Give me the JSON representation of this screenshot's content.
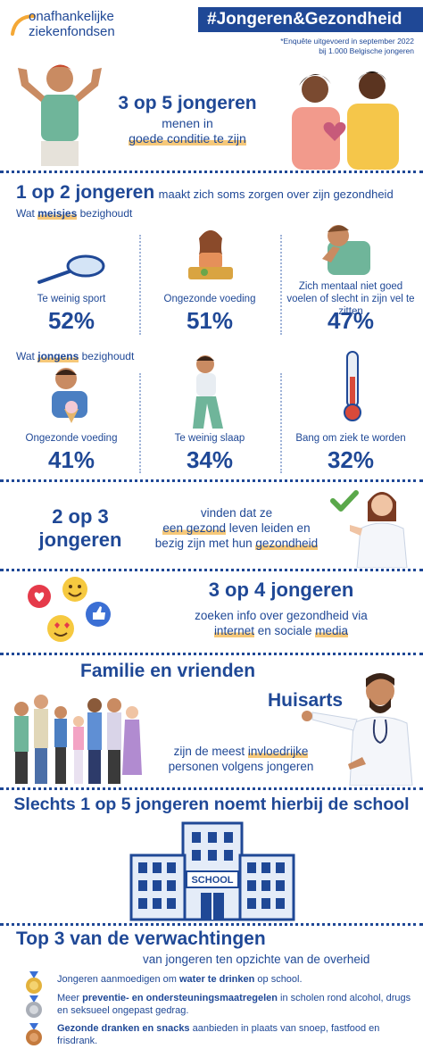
{
  "logo": {
    "line1": "onafhankelijke",
    "line2": "ziekenfondsen"
  },
  "header": {
    "title": "#Jongeren&Gezondheid",
    "note_line1": "*Enquête uitgevoerd in september 2022",
    "note_line2": "bij 1.000 Belgische jongeren"
  },
  "section1": {
    "headline": "3 op 5 jongeren",
    "line1": "menen in",
    "line2": "goede conditie te zijn"
  },
  "section2": {
    "headline": "1 op 2 jongeren",
    "rest": "maakt zich soms zorgen over zijn gezondheid",
    "girls_prefix": "Wat ",
    "girls_word": "meisjes",
    "girls_suffix": " bezighoudt",
    "girls_items": [
      {
        "label": "Te weinig sport",
        "value": "52%"
      },
      {
        "label": "Ongezonde voeding",
        "value": "51%"
      },
      {
        "label": "Zich mentaal niet goed voelen of slecht in zijn vel te zitten",
        "value": "47%"
      }
    ],
    "boys_prefix": "Wat ",
    "boys_word": "jongens",
    "boys_suffix": " bezighoudt",
    "boys_items": [
      {
        "label": "Ongezonde voeding",
        "value": "41%"
      },
      {
        "label": "Te weinig slaap",
        "value": "34%"
      },
      {
        "label": "Bang om ziek te worden",
        "value": "32%"
      }
    ]
  },
  "section3": {
    "headline_line1": "2 op 3",
    "headline_line2": "jongeren",
    "text_line1": "vinden dat ze",
    "text_hl1": "een gezond",
    "text_line2_rest": " leven leiden en",
    "text_line3_pre": "bezig zijn met hun ",
    "text_hl2": "gezondheid"
  },
  "section4": {
    "headline": "3 op 4 jongeren",
    "line1": "zoeken info over gezondheid via",
    "hl1": "internet",
    "mid": " en sociale ",
    "hl2": "media"
  },
  "section5": {
    "title1": "Familie en vrienden",
    "title2": "Huisarts",
    "line1_pre": "zijn de meest ",
    "line1_hl": "invloedrijke",
    "line2": "personen volgens jongeren"
  },
  "section6": {
    "headline": "Slechts 1 op 5 jongeren noemt hierbij de school",
    "sign": "SCHOOL"
  },
  "section7": {
    "title": "Top 3 van de verwachtingen",
    "subtitle": "van jongeren ten opzichte van de overheid",
    "items": [
      {
        "pre": "Jongeren aanmoedigen om ",
        "bold": "water te drinken",
        "post": " op school."
      },
      {
        "pre": "Meer ",
        "bold": "preventie- en ondersteuningsmaatregelen",
        "post": " in scholen rond alcohol, drugs en seksueel ongepast gedrag."
      },
      {
        "pre": "",
        "bold": "Gezonde dranken en snacks",
        "post": " aanbieden in plaats van snoep, fastfood en frisdrank."
      }
    ]
  },
  "colors": {
    "navy": "#1f4896",
    "highlight": "#f6c879",
    "gold": "#e3b23c",
    "silver": "#a9aeb7",
    "bronze": "#c47a3d"
  }
}
